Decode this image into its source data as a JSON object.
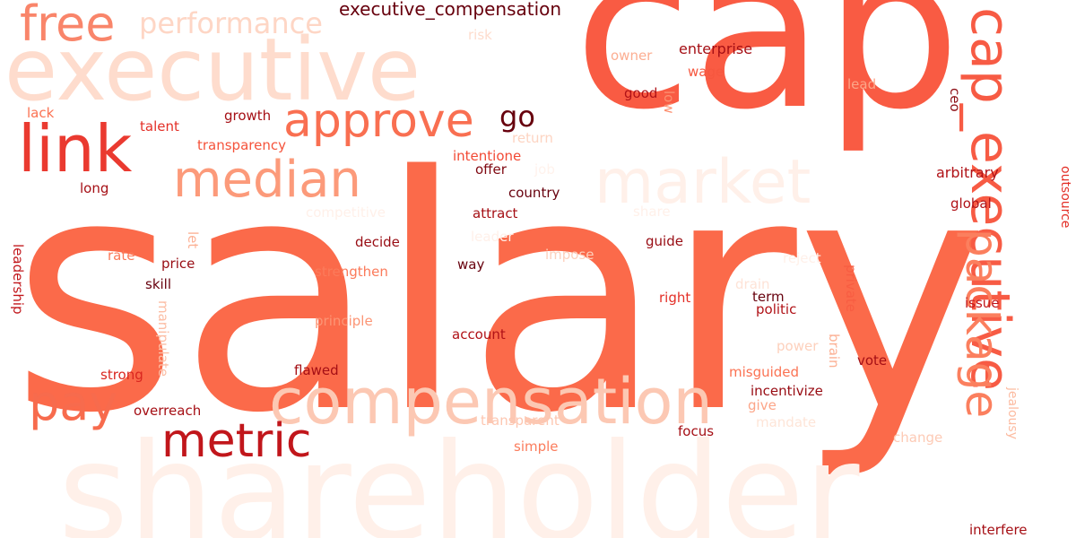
{
  "words": [
    {
      "id": "salary",
      "text": "salary",
      "color": "#fb6a4a"
    },
    {
      "id": "cap",
      "text": "cap",
      "color": "#f95b43"
    },
    {
      "id": "shareholder",
      "text": "shareholder",
      "color": "#fff0e9"
    },
    {
      "id": "executive",
      "text": "executive",
      "color": "#fedccd"
    },
    {
      "id": "compensation",
      "text": "compensation",
      "color": "#fcc8b3"
    },
    {
      "id": "cap_executive",
      "text": "cap_executive",
      "color": "#f75b44"
    },
    {
      "id": "market",
      "text": "market",
      "color": "#fff0e9"
    },
    {
      "id": "median",
      "text": "median",
      "color": "#fc9a7a"
    },
    {
      "id": "approve",
      "text": "approve",
      "color": "#f96f51"
    },
    {
      "id": "link",
      "text": "link",
      "color": "#ea3a30"
    },
    {
      "id": "metric",
      "text": "metric",
      "color": "#c1161b"
    },
    {
      "id": "package",
      "text": "package",
      "color": "#fb7f5e"
    },
    {
      "id": "pay",
      "text": "pay",
      "color": "#f76b4d"
    },
    {
      "id": "free",
      "text": "free",
      "color": "#f9856a"
    },
    {
      "id": "performance",
      "text": "performance",
      "color": "#fed6c5"
    },
    {
      "id": "go",
      "text": "go",
      "color": "#67000d"
    },
    {
      "id": "executive_compensation",
      "text": "executive_compensation",
      "color": "#67000d"
    },
    {
      "id": "risk",
      "text": "risk",
      "color": "#fedccd"
    },
    {
      "id": "owner",
      "text": "owner",
      "color": "#fcae92"
    },
    {
      "id": "enterprise",
      "text": "enterprise",
      "color": "#a50f15"
    },
    {
      "id": "wage",
      "text": "wage",
      "color": "#f6573f"
    },
    {
      "id": "good",
      "text": "good",
      "color": "#b01217"
    },
    {
      "id": "low",
      "text": "low",
      "color": "#fc9070"
    },
    {
      "id": "lead",
      "text": "lead",
      "color": "#fca588"
    },
    {
      "id": "ceo",
      "text": "ceo",
      "color": "#8b0b12"
    },
    {
      "id": "lack",
      "text": "lack",
      "color": "#fb7252"
    },
    {
      "id": "talent",
      "text": "talent",
      "color": "#e32f27"
    },
    {
      "id": "growth",
      "text": "growth",
      "color": "#a50f15"
    },
    {
      "id": "transparency",
      "text": "transparency",
      "color": "#f5533b"
    },
    {
      "id": "return",
      "text": "return",
      "color": "#fdd4c2"
    },
    {
      "id": "intentione",
      "text": "intentione",
      "color": "#f24a35"
    },
    {
      "id": "offer",
      "text": "offer",
      "color": "#7f0811"
    },
    {
      "id": "job",
      "text": "job",
      "color": "#fff2ec"
    },
    {
      "id": "long",
      "text": "long",
      "color": "#a50f15"
    },
    {
      "id": "arbitrary",
      "text": "arbitrary",
      "color": "#b01217"
    },
    {
      "id": "outsource",
      "text": "outsource",
      "color": "#e32f27"
    },
    {
      "id": "country",
      "text": "country",
      "color": "#67000d"
    },
    {
      "id": "global",
      "text": "global",
      "color": "#b01217"
    },
    {
      "id": "competitive",
      "text": "competitive",
      "color": "#fff0e9"
    },
    {
      "id": "share",
      "text": "share",
      "color": "#fff0e9"
    },
    {
      "id": "attract",
      "text": "attract",
      "color": "#a50f15"
    },
    {
      "id": "let",
      "text": "let",
      "color": "#fcb195"
    },
    {
      "id": "leader",
      "text": "leader",
      "color": "#fff0e9"
    },
    {
      "id": "leadership",
      "text": "leadership",
      "color": "#c1161b"
    },
    {
      "id": "decide",
      "text": "decide",
      "color": "#980c13"
    },
    {
      "id": "guide",
      "text": "guide",
      "color": "#980c13"
    },
    {
      "id": "rate",
      "text": "rate",
      "color": "#fb7a5a"
    },
    {
      "id": "impose",
      "text": "impose",
      "color": "#fdd0bc"
    },
    {
      "id": "reject",
      "text": "reject",
      "color": "#fff0e9"
    },
    {
      "id": "price",
      "text": "price",
      "color": "#980c13"
    },
    {
      "id": "way",
      "text": "way",
      "color": "#67000d"
    },
    {
      "id": "drain",
      "text": "drain",
      "color": "#fee3d7"
    },
    {
      "id": "strengthen",
      "text": "strengthen",
      "color": "#fb7a5a"
    },
    {
      "id": "skill",
      "text": "skill",
      "color": "#67000d"
    },
    {
      "id": "private",
      "text": "private",
      "color": "#f85d42"
    },
    {
      "id": "manipulate",
      "text": "manipulate",
      "color": "#fcbea5"
    },
    {
      "id": "term",
      "text": "term",
      "color": "#67000d"
    },
    {
      "id": "right",
      "text": "right",
      "color": "#e32f27"
    },
    {
      "id": "issue",
      "text": "issue",
      "color": "#c1161b"
    },
    {
      "id": "politic",
      "text": "politic",
      "color": "#b01217"
    },
    {
      "id": "principle",
      "text": "principle",
      "color": "#fc9575"
    },
    {
      "id": "account",
      "text": "account",
      "color": "#b01217"
    },
    {
      "id": "power",
      "text": "power",
      "color": "#fdd0bc"
    },
    {
      "id": "brain",
      "text": "brain",
      "color": "#fcb195"
    },
    {
      "id": "strong",
      "text": "strong",
      "color": "#d9261f"
    },
    {
      "id": "flawed",
      "text": "flawed",
      "color": "#a50f15"
    },
    {
      "id": "misguided",
      "text": "misguided",
      "color": "#fb7252"
    },
    {
      "id": "vote",
      "text": "vote",
      "color": "#a50f15"
    },
    {
      "id": "incentivize",
      "text": "incentivize",
      "color": "#980c13"
    },
    {
      "id": "jealousy",
      "text": "jealousy",
      "color": "#fcbba1"
    },
    {
      "id": "overreach",
      "text": "overreach",
      "color": "#a50f15"
    },
    {
      "id": "give",
      "text": "give",
      "color": "#fca588"
    },
    {
      "id": "transparent",
      "text": "transparent",
      "color": "#fdc6b0"
    },
    {
      "id": "mandate",
      "text": "mandate",
      "color": "#fee5d8"
    },
    {
      "id": "focus",
      "text": "focus",
      "color": "#a50f15"
    },
    {
      "id": "change",
      "text": "change",
      "color": "#fdcab5"
    },
    {
      "id": "simple",
      "text": "simple",
      "color": "#fb7c5c"
    },
    {
      "id": "interfere",
      "text": "interfere",
      "color": "#a50f15"
    }
  ]
}
